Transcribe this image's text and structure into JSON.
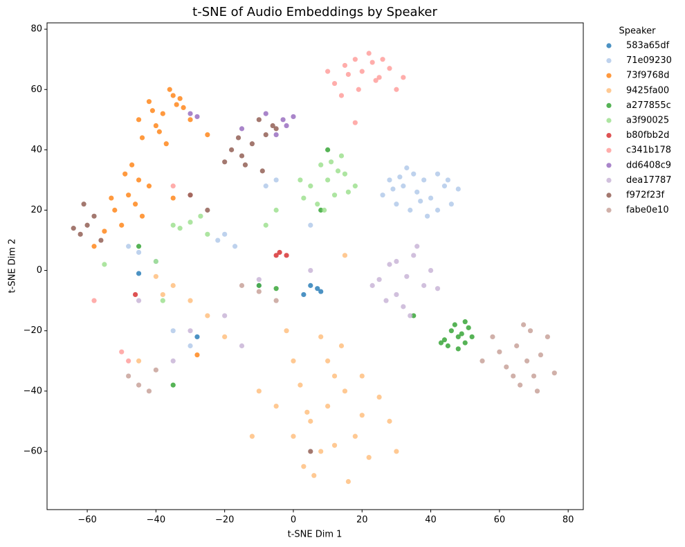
{
  "chart_data": {
    "type": "scatter",
    "title": "t-SNE of Audio Embeddings by Speaker",
    "x_label": "t-SNE Dim 1",
    "y_label": "t-SNE Dim 2",
    "xlim": [
      -71.7,
      84.4
    ],
    "ylim": [
      -79.3,
      82.1
    ],
    "xticks": [
      {
        "value": -60,
        "label": "−60"
      },
      {
        "value": -40,
        "label": "−40"
      },
      {
        "value": -20,
        "label": "−20"
      },
      0,
      20,
      40,
      60,
      80
    ],
    "yticks": [
      {
        "value": -60,
        "label": "−60"
      },
      {
        "value": -40,
        "label": "−40"
      },
      {
        "value": -20,
        "label": "−20"
      },
      0,
      20,
      40,
      60,
      80
    ],
    "grid": false,
    "legend_title": "Speaker",
    "legend_position": "outside right",
    "series": [
      {
        "name": "583a65df",
        "color": "#1f77b4",
        "x": [
          5,
          8,
          3,
          7,
          -28,
          -45
        ],
        "y": [
          -5,
          -7,
          -8,
          -6,
          -22,
          -1
        ]
      },
      {
        "name": "71e09230",
        "color": "#aec7e8",
        "x": [
          28,
          32,
          36,
          40,
          44,
          30,
          34,
          38,
          42,
          46,
          26,
          48,
          33,
          39,
          45,
          31,
          37,
          42,
          29,
          35,
          -20,
          -17,
          -22,
          -45,
          -48,
          -40,
          -5,
          -8,
          -35,
          -30,
          5,
          -10
        ],
        "y": [
          30,
          28,
          26,
          24,
          28,
          22,
          20,
          30,
          32,
          22,
          25,
          27,
          34,
          18,
          30,
          31,
          23,
          20,
          27,
          32,
          12,
          8,
          10,
          6,
          8,
          3,
          30,
          28,
          -20,
          -25,
          15,
          -5
        ]
      },
      {
        "name": "73f9768d",
        "color": "#ff7f0e",
        "x": [
          -38,
          -42,
          -35,
          -40,
          -32,
          -44,
          -36,
          -30,
          -39,
          -34,
          -41,
          -37,
          -33,
          -45,
          -48,
          -52,
          -45,
          -50,
          -42,
          -47,
          -53,
          -44,
          -49,
          -46,
          -55,
          -25,
          -58,
          -35,
          -28
        ],
        "y": [
          52,
          56,
          58,
          48,
          54,
          44,
          60,
          50,
          46,
          55,
          53,
          42,
          57,
          50,
          25,
          20,
          30,
          15,
          28,
          35,
          24,
          18,
          32,
          22,
          13,
          45,
          8,
          24,
          -28
        ]
      },
      {
        "name": "9425fa00",
        "color": "#ffbb78",
        "x": [
          10,
          5,
          15,
          0,
          20,
          8,
          12,
          -5,
          25,
          3,
          18,
          10,
          -10,
          22,
          6,
          14,
          0,
          28,
          2,
          16,
          8,
          -12,
          20,
          12,
          4,
          -35,
          -30,
          -40,
          -25,
          -45,
          -38,
          -20,
          15,
          -2,
          30
        ],
        "y": [
          -45,
          -50,
          -40,
          -55,
          -48,
          -60,
          -35,
          -45,
          -42,
          -65,
          -55,
          -30,
          -40,
          -62,
          -68,
          -25,
          -30,
          -50,
          -38,
          -70,
          -22,
          -55,
          -35,
          -58,
          -47,
          -5,
          -10,
          -2,
          -15,
          -30,
          -8,
          -22,
          5,
          -20,
          -60
        ]
      },
      {
        "name": "a277855c",
        "color": "#2ca02c",
        "x": [
          48,
          46,
          50,
          47,
          49,
          45,
          51,
          44,
          48,
          50,
          43,
          52,
          -10,
          -5,
          -45,
          -35,
          10,
          8,
          35
        ],
        "y": [
          -22,
          -20,
          -24,
          -18,
          -21,
          -25,
          -19,
          -23,
          -26,
          -17,
          -24,
          -22,
          -5,
          -6,
          8,
          -38,
          40,
          20,
          -15
        ]
      },
      {
        "name": "a3f90025",
        "color": "#98df8a",
        "x": [
          10,
          5,
          15,
          8,
          12,
          2,
          18,
          7,
          14,
          3,
          11,
          16,
          9,
          13,
          -30,
          -33,
          -27,
          -35,
          -25,
          -5,
          -8,
          -40,
          -55,
          -38
        ],
        "y": [
          30,
          28,
          32,
          35,
          25,
          30,
          28,
          22,
          38,
          24,
          36,
          26,
          20,
          33,
          16,
          14,
          18,
          15,
          12,
          20,
          15,
          3,
          2,
          -10
        ]
      },
      {
        "name": "b80fbb2d",
        "color": "#d62728",
        "x": [
          -4,
          -2,
          -5,
          -46
        ],
        "y": [
          6,
          5,
          5,
          -8
        ]
      },
      {
        "name": "c341b178",
        "color": "#ff9896",
        "x": [
          20,
          15,
          25,
          18,
          28,
          12,
          22,
          30,
          16,
          24,
          10,
          26,
          19,
          32,
          14,
          23,
          -50,
          -48,
          -35,
          -58,
          -30,
          18
        ],
        "y": [
          66,
          68,
          64,
          70,
          67,
          62,
          72,
          60,
          65,
          63,
          66,
          70,
          60,
          64,
          58,
          69,
          -27,
          -30,
          28,
          -10,
          25,
          49
        ]
      },
      {
        "name": "dd6408c9",
        "color": "#9467bd",
        "x": [
          -3,
          0,
          -2,
          -5,
          -15,
          -30,
          -28,
          -8
        ],
        "y": [
          50,
          51,
          48,
          45,
          47,
          52,
          51,
          52
        ]
      },
      {
        "name": "dea17787",
        "color": "#c5b0d5",
        "x": [
          33,
          28,
          38,
          30,
          35,
          25,
          40,
          32,
          36,
          27,
          42,
          34,
          30,
          23,
          -20,
          -10,
          -30,
          -45,
          -15,
          5,
          -35
        ],
        "y": [
          -2,
          2,
          -5,
          -8,
          5,
          -3,
          0,
          -12,
          8,
          -10,
          -6,
          -15,
          3,
          -5,
          -15,
          -3,
          -20,
          -10,
          -25,
          0,
          -30
        ]
      },
      {
        "name": "f972f23f",
        "color": "#8c564b",
        "x": [
          -12,
          -15,
          -8,
          -18,
          -10,
          -5,
          -14,
          -20,
          -9,
          -16,
          -6,
          -60,
          -62,
          -58,
          -64,
          -56,
          -61,
          -30,
          -25,
          5
        ],
        "y": [
          42,
          38,
          45,
          40,
          50,
          47,
          35,
          36,
          33,
          44,
          48,
          15,
          12,
          18,
          14,
          10,
          22,
          25,
          20,
          -60
        ]
      },
      {
        "name": "fabe0e10",
        "color": "#c49c94",
        "x": [
          68,
          65,
          70,
          72,
          62,
          66,
          74,
          60,
          69,
          71,
          64,
          58,
          76,
          67,
          55,
          -45,
          -42,
          -48,
          -10,
          -5,
          -15,
          -40
        ],
        "y": [
          -30,
          -25,
          -35,
          -28,
          -32,
          -38,
          -22,
          -27,
          -20,
          -40,
          -35,
          -22,
          -34,
          -18,
          -30,
          -38,
          -40,
          -35,
          -7,
          -10,
          -5,
          -33
        ]
      }
    ]
  }
}
